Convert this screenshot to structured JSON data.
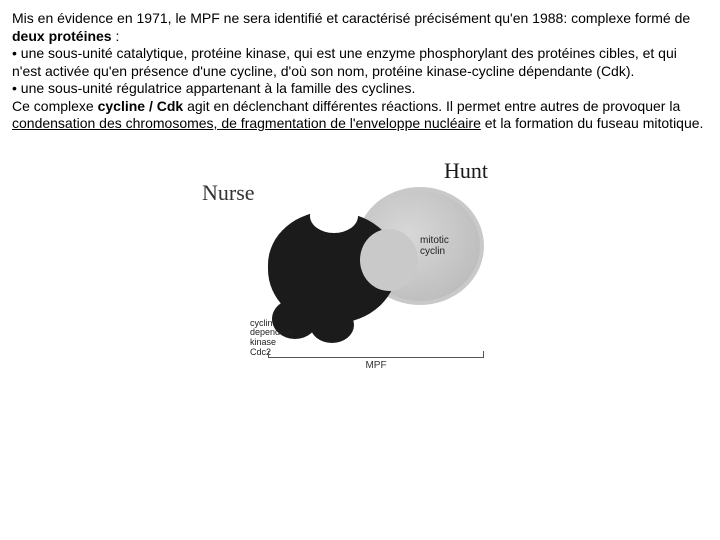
{
  "text": {
    "p1a": "Mis en évidence en 1971, le MPF ne sera identifié et caractérisé précisément qu'en 1988: complexe formé de ",
    "p1b": "deux protéines",
    "p1c": " :",
    "b1": "• une sous-unité catalytique, protéine kinase, qui est une enzyme phosphorylant des protéines cibles, et qui n'est activée qu'en présence d'une cycline, d'où son nom, protéine kinase-cycline dépendante (Cdk).",
    "b2": "• une sous-unité régulatrice appartenant à la famille des cyclines.",
    "p2a": "Ce complexe ",
    "p2b": "cycline / Cdk",
    "p2c": " agit en déclenchant différentes réactions. Il permet entre autres de provoquer la ",
    "p2d": "condensation des chromosomes, de fragmentation de l'enveloppe nucléaire",
    "p2e": " et la formation du fuseau mitotique."
  },
  "diagram": {
    "nurse": "Nurse",
    "hunt": "Hunt",
    "cyclin_label_1": "mitotic",
    "cyclin_label_2": "cyclin",
    "kinase_label_1": "cyclin-",
    "kinase_label_2": "dependent kinase",
    "kinase_label_3": "Cdc2",
    "bracket": "MPF",
    "colors": {
      "kinase": "#1b1b1b",
      "cyclin": "#c9c9c9",
      "text": "#222222"
    }
  }
}
